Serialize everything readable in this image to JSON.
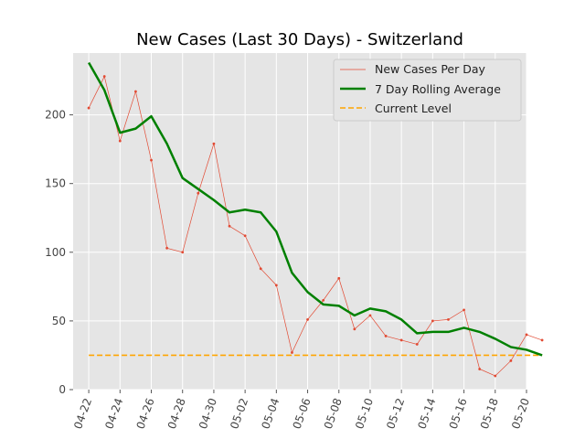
{
  "chart_data": {
    "type": "line",
    "title": "New Cases (Last 30 Days) - Switzerland",
    "xlabel": "",
    "ylabel": "",
    "xlim": [
      "2020-04-21",
      "2020-05-20"
    ],
    "ylim": [
      0,
      245
    ],
    "x_tick_labels": [
      "04-22",
      "04-24",
      "04-26",
      "04-28",
      "04-30",
      "05-02",
      "05-04",
      "05-06",
      "05-08",
      "05-10",
      "05-12",
      "05-14",
      "05-16",
      "05-18",
      "05-20"
    ],
    "y_ticks": [
      0,
      50,
      100,
      150,
      200
    ],
    "grid": true,
    "legend_position": "top-right",
    "dates": [
      "2020-04-22",
      "2020-04-23",
      "2020-04-24",
      "2020-04-25",
      "2020-04-26",
      "2020-04-27",
      "2020-04-28",
      "2020-04-29",
      "2020-04-30",
      "2020-05-01",
      "2020-05-02",
      "2020-05-03",
      "2020-05-04",
      "2020-05-05",
      "2020-05-06",
      "2020-05-07",
      "2020-05-08",
      "2020-05-09",
      "2020-05-10",
      "2020-05-11",
      "2020-05-12",
      "2020-05-13",
      "2020-05-14",
      "2020-05-15",
      "2020-05-16",
      "2020-05-17",
      "2020-05-18",
      "2020-05-19",
      "2020-05-20",
      "2020-05-21"
    ],
    "series": [
      {
        "name": "New Cases Per Day",
        "color": "#e24a33",
        "style": "thin-line-with-points",
        "values": [
          205,
          228,
          181,
          217,
          167,
          103,
          100,
          143,
          179,
          119,
          112,
          88,
          76,
          27,
          51,
          65,
          81,
          44,
          54,
          39,
          36,
          33,
          50,
          51,
          58,
          15,
          10,
          21,
          40,
          36
        ]
      },
      {
        "name": "7 Day Rolling Average",
        "color": "#008000",
        "style": "thick-line",
        "values": [
          238,
          218,
          187,
          190,
          199,
          179,
          154,
          146,
          138,
          129,
          131,
          129,
          115,
          85,
          71,
          62,
          61,
          54,
          59,
          57,
          51,
          41,
          42,
          42,
          45,
          42,
          37,
          31,
          29,
          25
        ]
      },
      {
        "name": "Current Level",
        "color": "#ffa500",
        "style": "dashed",
        "values": [
          25,
          25,
          25,
          25,
          25,
          25,
          25,
          25,
          25,
          25,
          25,
          25,
          25,
          25,
          25,
          25,
          25,
          25,
          25,
          25,
          25,
          25,
          25,
          25,
          25,
          25,
          25,
          25,
          25,
          25
        ]
      }
    ]
  }
}
